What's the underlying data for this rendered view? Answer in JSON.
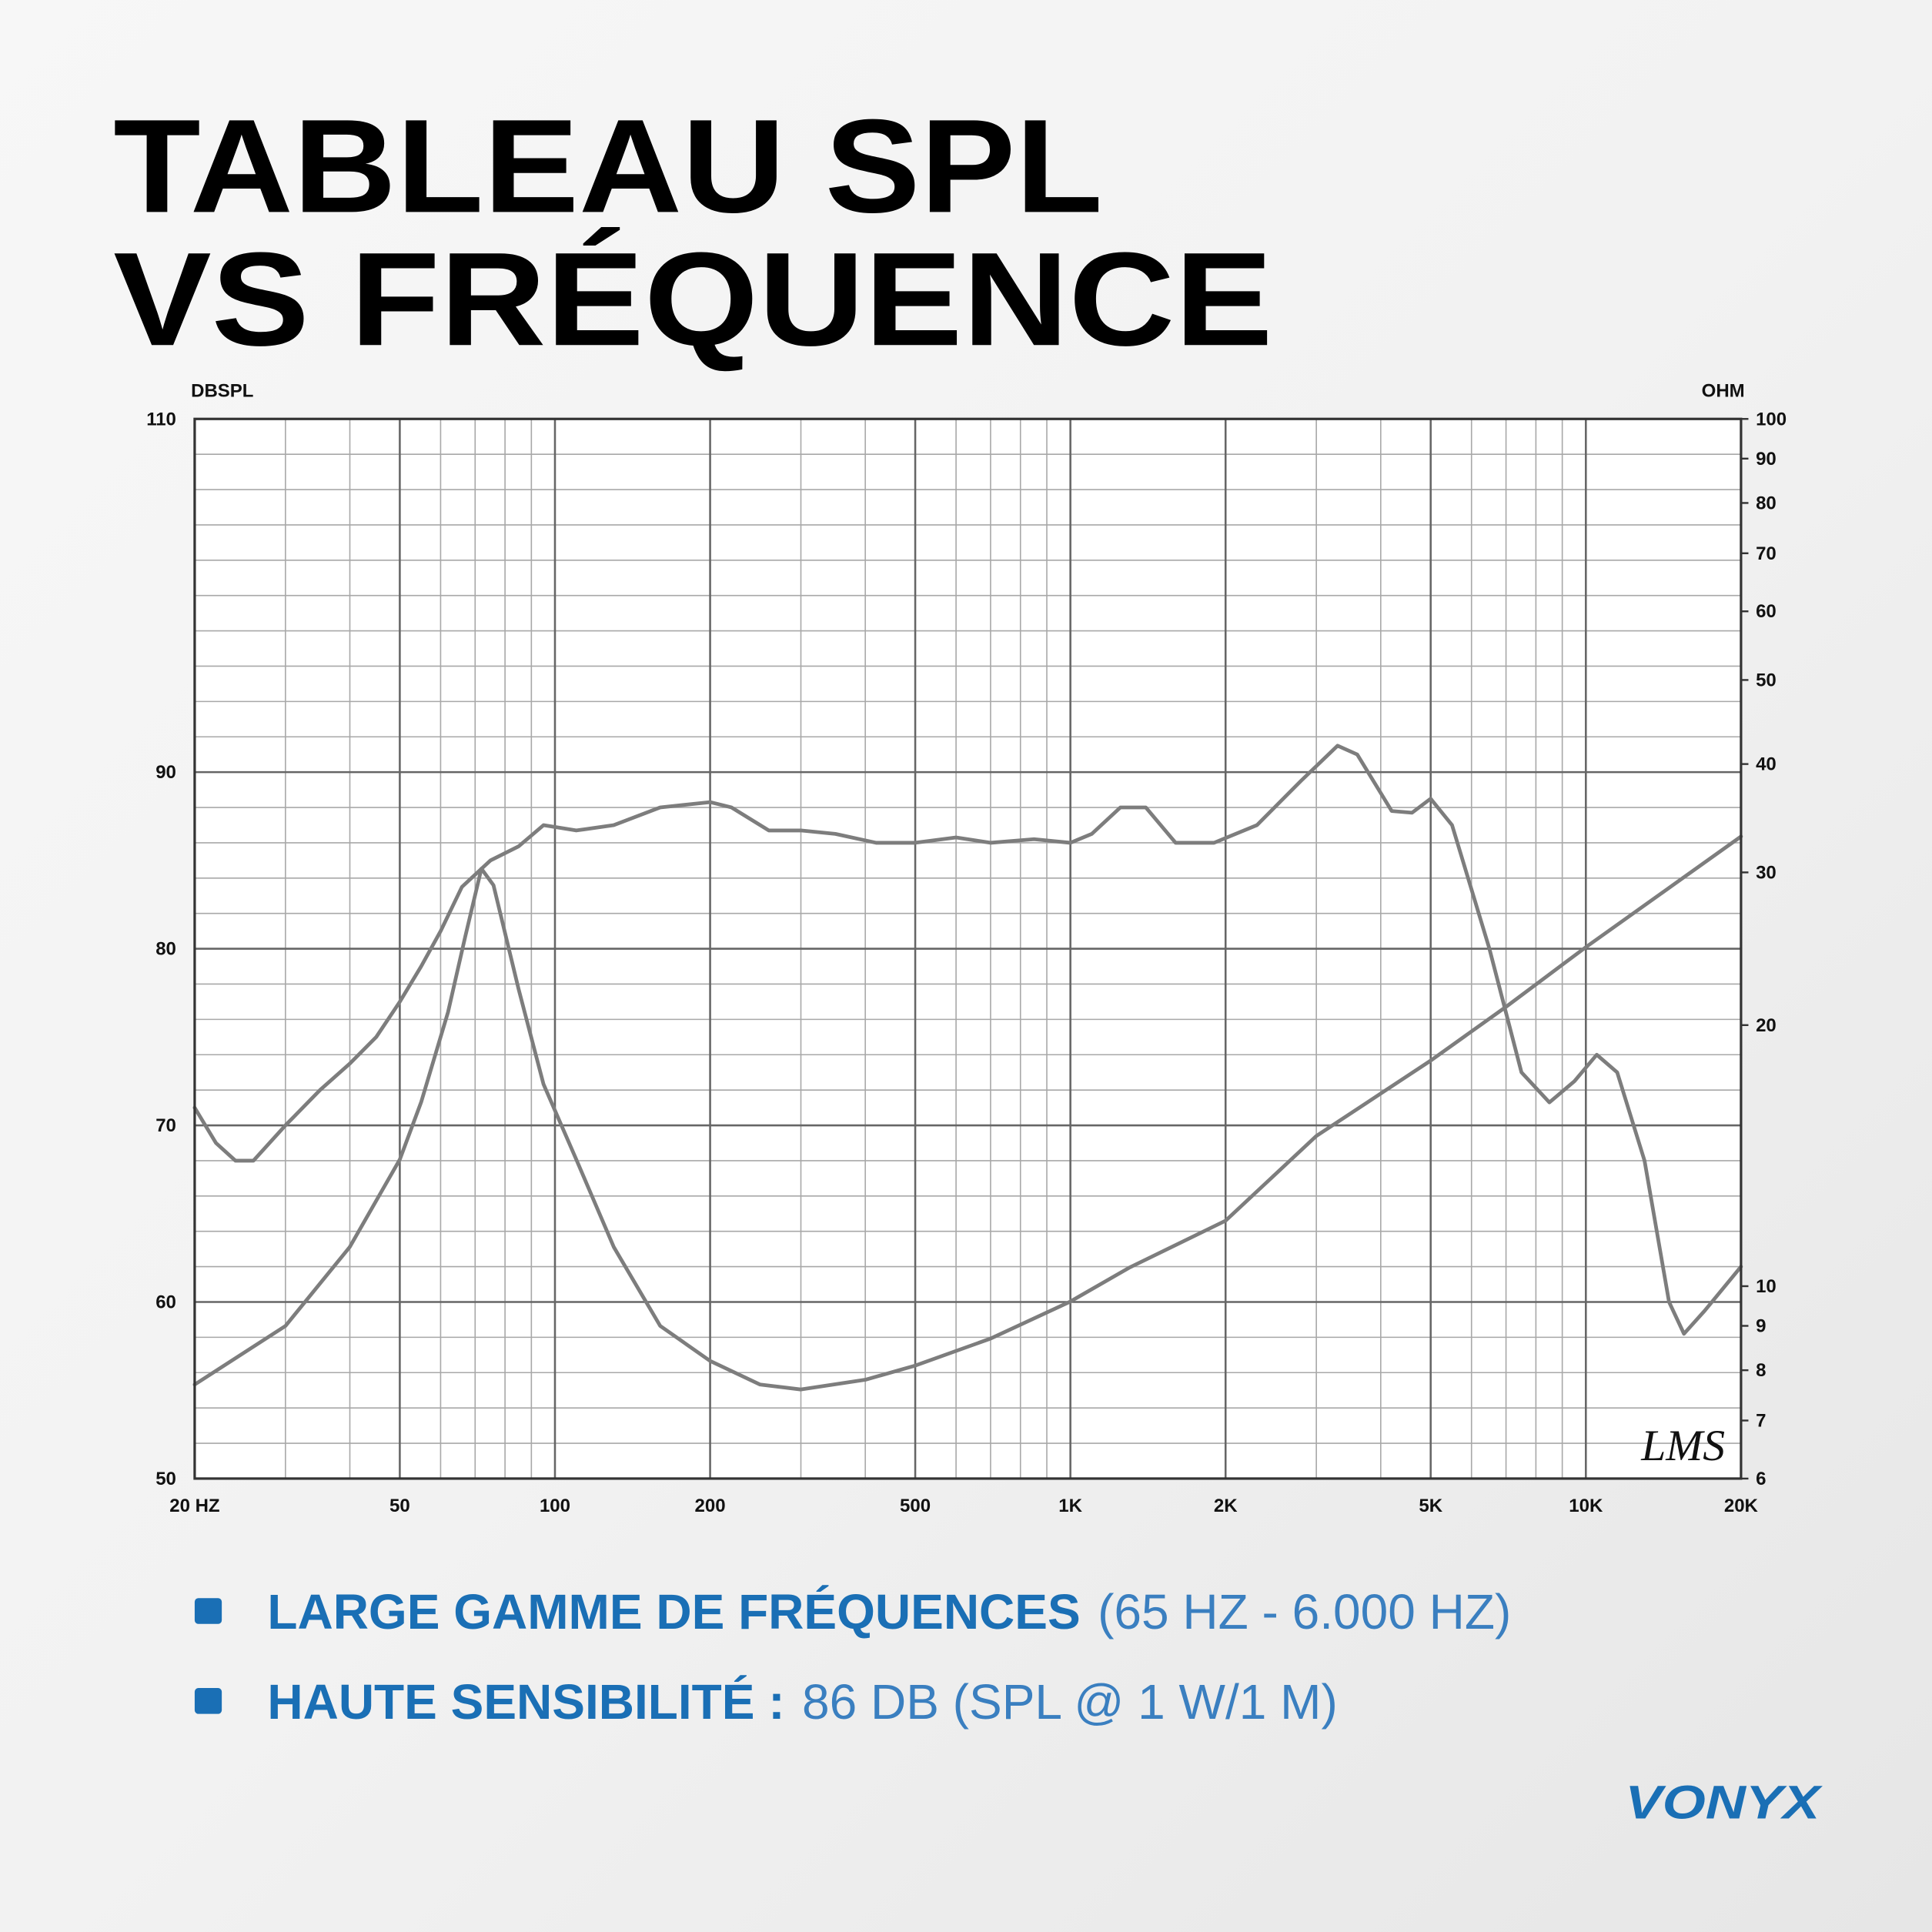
{
  "header": {
    "line1": "TABLEAU SPL",
    "line2": "VS FRÉQUENCE"
  },
  "chart_data": {
    "type": "line",
    "y_label": "DBSPL",
    "y2_label": "OHM",
    "watermark": "LMS",
    "xlog": true,
    "y2log": true,
    "xlim": [
      20,
      20000
    ],
    "xticks": [
      {
        "value": 20,
        "label": "20 HZ"
      },
      50,
      100,
      200,
      500,
      {
        "value": 1000,
        "label": "1K"
      },
      {
        "value": 2000,
        "label": "2K"
      },
      {
        "value": 5000,
        "label": "5K"
      },
      {
        "value": 10000,
        "label": "10K"
      },
      {
        "value": 20000,
        "label": "20K"
      }
    ],
    "xgrid": [
      30,
      40,
      60,
      70,
      80,
      90,
      300,
      400,
      600,
      700,
      800,
      900,
      3000,
      4000,
      6000,
      7000,
      8000,
      9000
    ],
    "ylim": [
      50,
      110
    ],
    "yticks": [
      50,
      60,
      70,
      80,
      90,
      110
    ],
    "ygrid": [
      52,
      54,
      56,
      58,
      62,
      64,
      66,
      68,
      72,
      74,
      76,
      78,
      82,
      84,
      86,
      88,
      92,
      94,
      96,
      98,
      100,
      102,
      104,
      106,
      108
    ],
    "y2lim": [
      6,
      100
    ],
    "y2ticks": [
      6,
      7,
      8,
      9,
      10,
      20,
      30,
      40,
      50,
      60,
      70,
      80,
      90,
      100
    ],
    "grid": true,
    "series": [
      {
        "axis": "y",
        "color": "#7d7d7d",
        "x": [
          20,
          22,
          24,
          26,
          30,
          35,
          40,
          45,
          50,
          55,
          60,
          66,
          75,
          85,
          95,
          110,
          130,
          160,
          200,
          220,
          260,
          300,
          350,
          420,
          500,
          600,
          700,
          850,
          1000,
          1100,
          1250,
          1400,
          1600,
          1900,
          2300,
          2800,
          3300,
          3600,
          4200,
          4600,
          5000,
          5500,
          6500,
          7500,
          8500,
          9500,
          10500,
          11500,
          13000,
          14500,
          15500,
          17000,
          20000
        ],
        "values": [
          71,
          69,
          68,
          68,
          70,
          72,
          73.5,
          75,
          77,
          79,
          81,
          83.5,
          85,
          85.8,
          87,
          86.7,
          87,
          88,
          88.3,
          88,
          86.7,
          86.7,
          86.5,
          86,
          86,
          86.3,
          86,
          86.2,
          86,
          86.5,
          88,
          88,
          86,
          86,
          87,
          89.5,
          91.5,
          91,
          87.8,
          87.7,
          88.5,
          87,
          80,
          73,
          71.3,
          72.5,
          74,
          73,
          68,
          60,
          58.2,
          59.5,
          62
        ]
      },
      {
        "axis": "y2",
        "color": "#7d7d7d",
        "x": [
          20,
          30,
          40,
          50,
          55,
          62,
          67,
          72,
          76,
          85,
          95,
          110,
          130,
          160,
          200,
          250,
          300,
          400,
          500,
          700,
          1000,
          1300,
          2000,
          3000,
          5000,
          7000,
          10000,
          20000
        ],
        "values": [
          7.7,
          9,
          11.1,
          14,
          16.3,
          20.7,
          25.3,
          30.3,
          29,
          22,
          17.1,
          14,
          11.1,
          9,
          8.2,
          7.7,
          7.6,
          7.8,
          8.1,
          8.7,
          9.6,
          10.5,
          11.9,
          14.9,
          18.2,
          21,
          24.6,
          33
        ]
      }
    ]
  },
  "bullets": [
    {
      "bold": "LARGE GAMME DE FRÉQUENCES",
      "light": "(65 HZ - 6.000 HZ)"
    },
    {
      "bold": "HAUTE SENSIBILITÉ :",
      "light": "86 DB (SPL @ 1 W/1 M)"
    }
  ],
  "logo": "VONYX"
}
